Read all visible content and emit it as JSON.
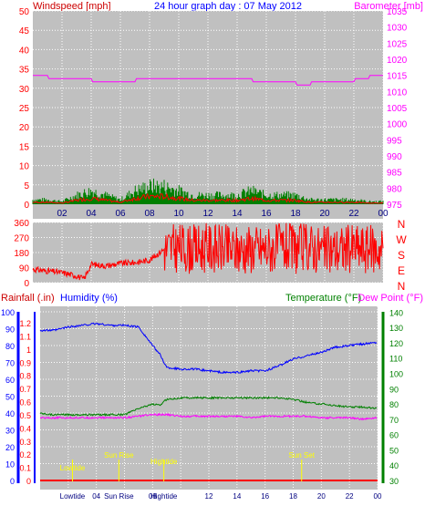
{
  "header": {
    "left_label": "Windspeed [mph]",
    "center_label": "24 hour graph day : 07 May 2012",
    "right_label": "Barometer [mb]"
  },
  "colors": {
    "background": "#c0c0c0",
    "grid": "#ffffff",
    "windspeed": "#ff0000",
    "gust": "#008000",
    "barometer": "#ff00ff",
    "direction": "#ff0000",
    "humidity": "#0000ff",
    "temperature": "#008000",
    "dew_point": "#ff00ff",
    "rainfall": "#ff0000",
    "tide_markers": "#ffff00",
    "header_blue": "#0000ff"
  },
  "wind_panel": {
    "left_ticks": [
      "0",
      "5",
      "10",
      "15",
      "20",
      "25",
      "30",
      "35",
      "40",
      "45",
      "50"
    ],
    "right_ticks": [
      "975",
      "980",
      "985",
      "990",
      "995",
      "1000",
      "1005",
      "1010",
      "1015",
      "1020",
      "1025",
      "1030",
      "1035"
    ],
    "x_ticks": [
      "02",
      "04",
      "06",
      "08",
      "10",
      "12",
      "14",
      "16",
      "18",
      "20",
      "22",
      "00"
    ]
  },
  "direction_panel": {
    "left_ticks": [
      "0",
      "90",
      "180",
      "270",
      "360"
    ],
    "right_letters": [
      "N",
      "W",
      "S",
      "E",
      "N"
    ]
  },
  "lower_panel": {
    "label_rain": "Rainfall (.in)",
    "label_humidity": "Humidity (%)",
    "label_temperature": "Temperature (°F)",
    "label_dewpoint": "Dew Point (°F)",
    "humidity_ticks": [
      "0",
      "10",
      "20",
      "30",
      "40",
      "50",
      "60",
      "70",
      "80",
      "90",
      "100"
    ],
    "rain_ticks": [
      "0",
      "0.1",
      "0.2",
      "0.3",
      "0.4",
      "0.5",
      "0.6",
      "0.7",
      "0.8",
      "0.9",
      "1",
      "1.1",
      "1.2"
    ],
    "temp_ticks": [
      "30",
      "40",
      "50",
      "60",
      "70",
      "80",
      "90",
      "100",
      "110",
      "120",
      "130",
      "140"
    ],
    "x_ticks": [
      "Lowtide",
      "04",
      "Sun Rise",
      "08",
      "Hightide",
      "12",
      "14",
      "16",
      "18",
      "20",
      "22",
      "00"
    ],
    "markers": [
      {
        "label": "Lowtide",
        "hour": 2.3
      },
      {
        "label": "Sun Rise",
        "hour": 5.6
      },
      {
        "label": "Hightide",
        "hour": 8.8
      },
      {
        "label": "Sun Set",
        "hour": 18.6
      }
    ]
  },
  "chart_data": [
    {
      "type": "line",
      "x_unit": "hour",
      "ylim": [
        0,
        50
      ],
      "y2lim": [
        975,
        1035
      ],
      "xlim": [
        0,
        24
      ],
      "series": [
        {
          "name": "Windspeed [mph]",
          "axis": "left",
          "x": [
            0,
            1,
            2,
            3,
            4,
            5,
            6,
            7,
            8,
            9,
            10,
            11,
            12,
            13,
            14,
            15,
            16,
            17,
            18,
            19,
            20,
            21,
            22,
            23,
            24
          ],
          "values": [
            0.5,
            0.5,
            0.3,
            1,
            1.5,
            1,
            0.5,
            1.5,
            2,
            2,
            1.5,
            1,
            1,
            1,
            1,
            1.5,
            1,
            1,
            1,
            0.5,
            0.5,
            0.5,
            0.5,
            0.3,
            0.3
          ]
        },
        {
          "name": "Barometer [mb]",
          "axis": "right",
          "x": [
            0,
            1,
            1.1,
            4,
            4.1,
            7,
            7.1,
            15,
            15.1,
            18,
            18.1,
            19,
            19.1,
            22,
            22.1,
            23,
            23.1,
            24
          ],
          "values": [
            1015,
            1015,
            1014,
            1014,
            1013,
            1013,
            1014,
            1014,
            1013,
            1013,
            1012,
            1012,
            1013,
            1013,
            1014,
            1014,
            1015,
            1015
          ]
        }
      ]
    },
    {
      "type": "line",
      "x_unit": "hour",
      "ylim": [
        0,
        360
      ],
      "xlim": [
        0,
        24
      ],
      "series": [
        {
          "name": "Wind direction",
          "x": [
            0,
            1,
            2,
            3,
            3.5,
            4,
            5,
            6,
            7,
            8,
            9,
            10,
            11,
            12,
            13,
            14,
            15,
            16,
            17,
            18,
            19,
            20,
            21,
            22,
            23,
            24
          ],
          "values": [
            80,
            70,
            60,
            40,
            20,
            110,
            100,
            115,
            120,
            135,
            200,
            210,
            200,
            210,
            200,
            195,
            205,
            200,
            210,
            200,
            215,
            190,
            200,
            210,
            200,
            205
          ]
        }
      ]
    },
    {
      "type": "line",
      "x_unit": "hour",
      "ylim": [
        0,
        100
      ],
      "xlim": [
        0,
        24
      ],
      "series": [
        {
          "name": "Humidity (%)",
          "axis": "humidity",
          "x": [
            0,
            1,
            2,
            3,
            4,
            5,
            6,
            7,
            8,
            8.5,
            9,
            10,
            11,
            12,
            13,
            14,
            15,
            16,
            17,
            18,
            19,
            20,
            21,
            22,
            23,
            24
          ],
          "values": [
            89,
            89,
            91,
            92,
            93,
            92,
            92,
            91,
            80,
            75,
            67,
            66,
            66,
            65,
            64,
            64,
            65,
            65,
            68,
            72,
            74,
            76,
            79,
            80,
            81,
            82
          ]
        },
        {
          "name": "Temperature (°F)",
          "axis": "temperature",
          "x": [
            0,
            1,
            2,
            3,
            4,
            5,
            6,
            7,
            8,
            8.5,
            9,
            10,
            11,
            12,
            13,
            14,
            15,
            16,
            17,
            18,
            19,
            20,
            21,
            22,
            23,
            24
          ],
          "values": [
            74,
            73,
            73,
            73,
            73,
            73,
            73,
            77,
            80,
            79,
            83,
            84,
            84,
            84,
            84,
            84,
            84,
            84,
            84,
            83,
            81,
            80,
            79,
            78,
            78,
            77
          ]
        },
        {
          "name": "Dew Point (°F)",
          "axis": "temperature",
          "x": [
            0,
            1,
            2,
            3,
            4,
            5,
            6,
            7,
            8,
            9,
            10,
            11,
            12,
            13,
            14,
            15,
            16,
            17,
            18,
            19,
            20,
            21,
            22,
            23,
            24
          ],
          "values": [
            71,
            71,
            71,
            71,
            71,
            71,
            71,
            72,
            73,
            73,
            72,
            72,
            72,
            72,
            72,
            71,
            72,
            72,
            72,
            72,
            71,
            71,
            71,
            70,
            71
          ]
        },
        {
          "name": "Rainfall (.in)",
          "axis": "rain",
          "x": [
            0,
            24
          ],
          "values": [
            0,
            0
          ]
        }
      ]
    }
  ]
}
